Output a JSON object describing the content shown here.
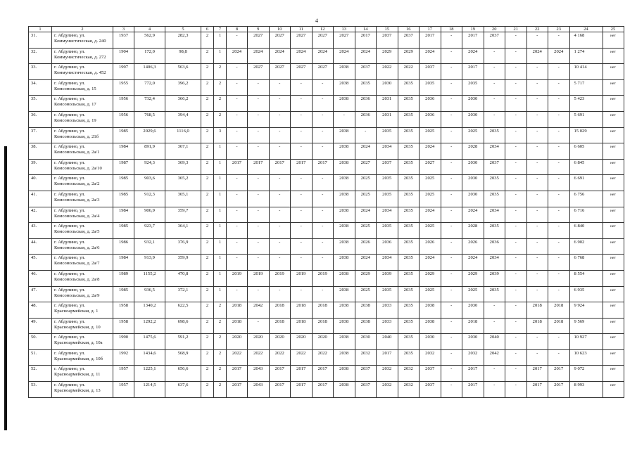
{
  "page_number": "4",
  "columns": [
    "1",
    "2",
    "3",
    "4",
    "5",
    "6",
    "7",
    "8",
    "9",
    "10",
    "11",
    "12",
    "13",
    "14",
    "15",
    "16",
    "17",
    "18",
    "19",
    "20",
    "21",
    "22",
    "23",
    "24",
    "25"
  ],
  "rows": [
    [
      "31.",
      "г. Абдулино, ул. Коммунистическая, д. 240",
      "1937",
      "562,9",
      "282,3",
      "2",
      "1",
      "-",
      "2027",
      "2027",
      "2027",
      "2027",
      "2027",
      "2017",
      "2037",
      "2037",
      "2017",
      "-",
      "2017",
      "2037",
      "-",
      "-",
      "-",
      "4 168",
      "нет"
    ],
    [
      "32.",
      "г. Абдулино, ул. Коммунистическая, д. 272",
      "1904",
      "172,0",
      "98,8",
      "2",
      "1",
      "2024",
      "2024",
      "2024",
      "2024",
      "2024",
      "2024",
      "2024",
      "2029",
      "2029",
      "2024",
      "-",
      "2024",
      "-",
      "-",
      "2024",
      "2024",
      "1 274",
      "нет"
    ],
    [
      "33.",
      "г. Абдулино, ул. Коммунистическая, д. 452",
      "1997",
      "1406,3",
      "563,6",
      "2",
      "2",
      "-",
      "2027",
      "2027",
      "2027",
      "2027",
      "2038",
      "2037",
      "2022",
      "2022",
      "2037",
      "-",
      "2017",
      "-",
      "-",
      "-",
      "-",
      "10 414",
      "нет"
    ],
    [
      "34.",
      "г. Абдулино, ул. Комсомольская, д. 15",
      "1955",
      "772,0",
      "396,2",
      "2",
      "2",
      "-",
      "-",
      "-",
      "-",
      "-",
      "2038",
      "2035",
      "2030",
      "2035",
      "2035",
      "-",
      "2035",
      "-",
      "-",
      "-",
      "-",
      "5 717",
      "нет"
    ],
    [
      "35.",
      "г. Абдулино, ул. Комсомольская, д. 17",
      "1956",
      "732,4",
      "366,2",
      "2",
      "2",
      "-",
      "-",
      "-",
      "-",
      "-",
      "2038",
      "2036",
      "2031",
      "2035",
      "2036",
      "-",
      "2030",
      "-",
      "-",
      "-",
      "-",
      "5 423",
      "нет"
    ],
    [
      "36.",
      "г. Абдулино, ул. Комсомольская, д. 19",
      "1956",
      "768,5",
      "394,4",
      "2",
      "2",
      "-",
      "-",
      "-",
      "-",
      "-",
      "-",
      "2036",
      "2031",
      "2035",
      "2036",
      "-",
      "2030",
      "-",
      "-",
      "-",
      "-",
      "5 691",
      "нет"
    ],
    [
      "37.",
      "г. Абдулино, ул. Комсомольская, д. 21б",
      "1985",
      "2029,6",
      "1116,0",
      "2",
      "3",
      "-",
      "-",
      "-",
      "-",
      "-",
      "2038",
      "-",
      "2035",
      "2035",
      "2025",
      "-",
      "2025",
      "2035",
      "-",
      "-",
      "-",
      "15 029",
      "нет"
    ],
    [
      "38.",
      "г. Абдулино, ул. Комсомольская, д. 2а/1",
      "1984",
      "891,9",
      "367,1",
      "2",
      "1",
      "-",
      "-",
      "-",
      "-",
      "-",
      "2038",
      "2024",
      "2034",
      "2035",
      "2024",
      "-",
      "2028",
      "2034",
      "-",
      "-",
      "-",
      "6 605",
      "нет"
    ],
    [
      "39.",
      "г. Абдулино, ул. Комсомольская, д. 2а/10",
      "1987",
      "924,3",
      "369,3",
      "2",
      "1",
      "2017",
      "2017",
      "2017",
      "2017",
      "2017",
      "2038",
      "2027",
      "2037",
      "2035",
      "2027",
      "-",
      "2030",
      "2037",
      "-",
      "-",
      "-",
      "6 845",
      "нет"
    ],
    [
      "40.",
      "г. Абдулино, ул. Комсомольская, д. 2а/2",
      "1985",
      "903,6",
      "365,2",
      "2",
      "1",
      "-",
      "-",
      "-",
      "-",
      "-",
      "2038",
      "2025",
      "2035",
      "2035",
      "2025",
      "-",
      "2030",
      "2035",
      "-",
      "-",
      "-",
      "6 691",
      "нет"
    ],
    [
      "41.",
      "г. Абдулино, ул. Комсомольская, д. 2а/3",
      "1985",
      "912,3",
      "365,1",
      "2",
      "1",
      "-",
      "-",
      "-",
      "-",
      "-",
      "2038",
      "2025",
      "2035",
      "2035",
      "2025",
      "-",
      "2030",
      "2035",
      "-",
      "-",
      "-",
      "6 756",
      "нет"
    ],
    [
      "42.",
      "г. Абдулино, ул. Комсомольская, д. 2а/4",
      "1984",
      "906,9",
      "359,7",
      "2",
      "1",
      "-",
      "-",
      "-",
      "-",
      "-",
      "2038",
      "2024",
      "2034",
      "2035",
      "2024",
      "-",
      "2024",
      "2034",
      "-",
      "-",
      "-",
      "6 716",
      "нет"
    ],
    [
      "43.",
      "г. Абдулино, ул. Комсомольская, д. 2а/5",
      "1985",
      "923,7",
      "364,1",
      "2",
      "1",
      "-",
      "-",
      "-",
      "-",
      "-",
      "2038",
      "2025",
      "2035",
      "2035",
      "2025",
      "-",
      "2028",
      "2035",
      "-",
      "-",
      "-",
      "6 840",
      "нет"
    ],
    [
      "44.",
      "г. Абдулино, ул. Комсомольская, д. 2а/6",
      "1986",
      "932,1",
      "376,9",
      "2",
      "1",
      "-",
      "-",
      "-",
      "-",
      "-",
      "2038",
      "2026",
      "2036",
      "2035",
      "2026",
      "-",
      "2026",
      "2036",
      "-",
      "-",
      "-",
      "6 902",
      "нет"
    ],
    [
      "45.",
      "г. Абдулино, ул. Комсомольская, д. 2а/7",
      "1984",
      "913,9",
      "359,9",
      "2",
      "1",
      "-",
      "-",
      "-",
      "-",
      "-",
      "2038",
      "2024",
      "2034",
      "2035",
      "2024",
      "-",
      "2024",
      "2034",
      "-",
      "-",
      "-",
      "6 768",
      "нет"
    ],
    [
      "46.",
      "г. Абдулино, ул. Комсомольская, д. 2а/8",
      "1989",
      "1155,2",
      "470,8",
      "2",
      "1",
      "2019",
      "2019",
      "2019",
      "2019",
      "2019",
      "2038",
      "2029",
      "2039",
      "2035",
      "2029",
      "-",
      "2029",
      "2039",
      "-",
      "-",
      "-",
      "8 554",
      "нет"
    ],
    [
      "47.",
      "г. Абдулино, ул. Комсомольская, д. 2а/9",
      "1985",
      "936,5",
      "372,1",
      "2",
      "1",
      "-",
      "-",
      "-",
      "-",
      "-",
      "2038",
      "2025",
      "2035",
      "2035",
      "2025",
      "-",
      "2025",
      "2035",
      "-",
      "-",
      "-",
      "6 935",
      "нет"
    ],
    [
      "48.",
      "г. Абдулино, ул. Красноармейская, д. 1",
      "1958",
      "1340,2",
      "622,5",
      "2",
      "2",
      "2018",
      "2042",
      "2018",
      "2018",
      "2018",
      "2038",
      "2038",
      "2033",
      "2035",
      "2038",
      "-",
      "2030",
      "-",
      "-",
      "2018",
      "2018",
      "9 924",
      "нет"
    ],
    [
      "49.",
      "г. Абдулино, ул. Красноармейская, д. 10",
      "1958",
      "1292,2",
      "698,6",
      "2",
      "2",
      "2018",
      "-",
      "2018",
      "2018",
      "2018",
      "2038",
      "2038",
      "2033",
      "2035",
      "2038",
      "-",
      "2018",
      "-",
      "-",
      "2018",
      "2018",
      "9 569",
      "нет"
    ],
    [
      "50.",
      "г. Абдулино, ул. Красноармейская, д. 10а",
      "1990",
      "1475,6",
      "591,2",
      "2",
      "2",
      "2020",
      "2020",
      "2020",
      "2020",
      "2020",
      "2038",
      "2030",
      "2040",
      "2035",
      "2030",
      "-",
      "2030",
      "2040",
      "-",
      "-",
      "-",
      "10 927",
      "нет"
    ],
    [
      "51.",
      "г. Абдулино, ул. Красноармейская, д. 10б",
      "1992",
      "1434,6",
      "568,9",
      "2",
      "2",
      "2022",
      "2022",
      "2022",
      "2022",
      "2022",
      "2038",
      "2032",
      "2017",
      "2035",
      "2032",
      "-",
      "2032",
      "2042",
      "-",
      "-",
      "-",
      "10 623",
      "нет"
    ],
    [
      "52.",
      "г. Абдулино, ул. Красноармейская, д. 11",
      "1957",
      "1225,1",
      "656,6",
      "2",
      "2",
      "2017",
      "2043",
      "2017",
      "2017",
      "2017",
      "2038",
      "2037",
      "2032",
      "2032",
      "2037",
      "-",
      "2017",
      "-",
      "-",
      "2017",
      "2017",
      "9 072",
      "нет"
    ],
    [
      "53.",
      "г. Абдулино, ул. Красноармейская, д. 13",
      "1957",
      "1214,5",
      "637,6",
      "2",
      "2",
      "2017",
      "2043",
      "2017",
      "2017",
      "2017",
      "2038",
      "2037",
      "2032",
      "2032",
      "2037",
      "-",
      "2017",
      "-",
      "-",
      "2017",
      "2017",
      "8 993",
      "нет"
    ]
  ]
}
